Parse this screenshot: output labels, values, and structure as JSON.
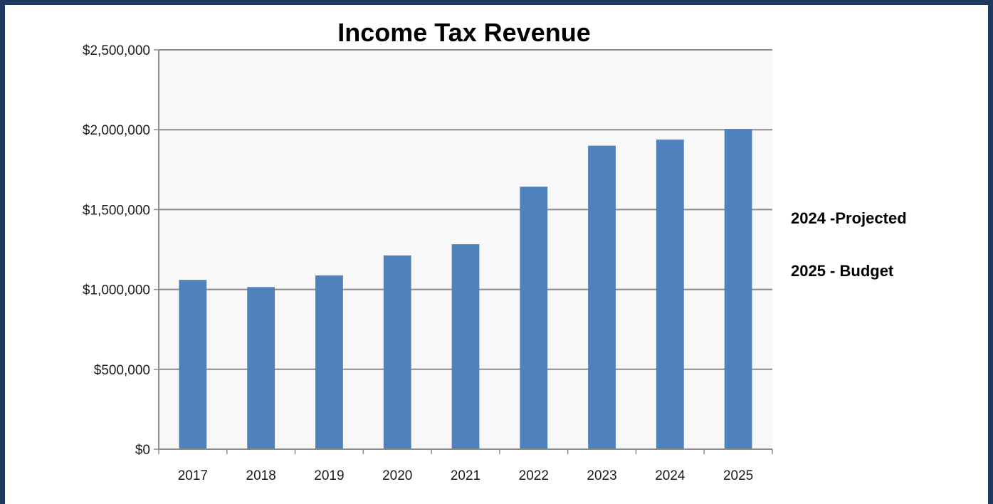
{
  "chart_data": {
    "type": "bar",
    "title": "Income Tax Revenue",
    "xlabel": "",
    "ylabel": "",
    "categories": [
      "2017",
      "2018",
      "2019",
      "2020",
      "2021",
      "2022",
      "2023",
      "2024",
      "2025"
    ],
    "values": [
      1060000,
      1015000,
      1088000,
      1213000,
      1283000,
      1643000,
      1900000,
      1938000,
      2005000
    ],
    "ylim": [
      0,
      2500000
    ],
    "yticks": [
      0,
      500000,
      1000000,
      1500000,
      2000000,
      2500000
    ],
    "ytick_labels": [
      "$0",
      "$500,000",
      "$1,000,000",
      "$1,500,000",
      "$2,000,000",
      "$2,500,000"
    ],
    "grid": true,
    "legend": "none",
    "annotations": [
      "2024 -Projected",
      "2025 - Budget"
    ],
    "colors": {
      "bar": "#4f81bd",
      "plot_background": "#f8f8f8",
      "gridline": "#8c8c8c",
      "frame_border": "#1f3a5f"
    }
  }
}
